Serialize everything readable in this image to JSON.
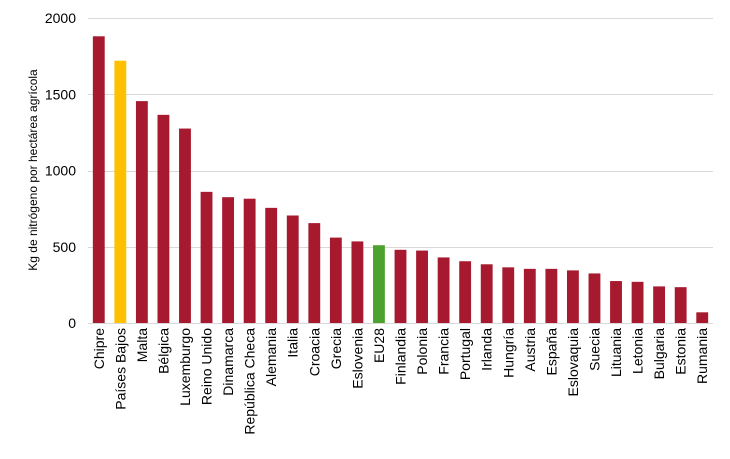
{
  "chart_data": {
    "type": "bar",
    "title": "",
    "xlabel": "",
    "ylabel": "Kg de nitrógeno por hectárea agrícola",
    "ylim": [
      0,
      2000
    ],
    "yticks": [
      0,
      500,
      1000,
      1500,
      2000
    ],
    "grid": true,
    "categories": [
      "Chipre",
      "Países Bajos",
      "Malta",
      "Bélgica",
      "Luxemburgo",
      "Reino Unido",
      "Dinamarca",
      "República Checa",
      "Alemania",
      "Italia",
      "Croacia",
      "Grecia",
      "Eslovenia",
      "EU28",
      "Finlandia",
      "Polonia",
      "Francia",
      "Portugal",
      "Irlanda",
      "Hungría",
      "Austria",
      "España",
      "Eslovaquia",
      "Suecia",
      "Lituania",
      "Letonia",
      "Bulgaria",
      "Estonia",
      "Rumania"
    ],
    "values": [
      1880,
      1720,
      1455,
      1365,
      1275,
      860,
      825,
      815,
      755,
      705,
      655,
      560,
      535,
      510,
      480,
      475,
      430,
      405,
      385,
      365,
      355,
      355,
      345,
      325,
      275,
      270,
      240,
      235,
      70
    ],
    "colors": {
      "default": "#a6192e",
      "highlight": "#ffc000",
      "average": "#4ca22f"
    },
    "bar_colors": [
      "default",
      "highlight",
      "default",
      "default",
      "default",
      "default",
      "default",
      "default",
      "default",
      "default",
      "default",
      "default",
      "default",
      "average",
      "default",
      "default",
      "default",
      "default",
      "default",
      "default",
      "default",
      "default",
      "default",
      "default",
      "default",
      "default",
      "default",
      "default",
      "default"
    ]
  }
}
